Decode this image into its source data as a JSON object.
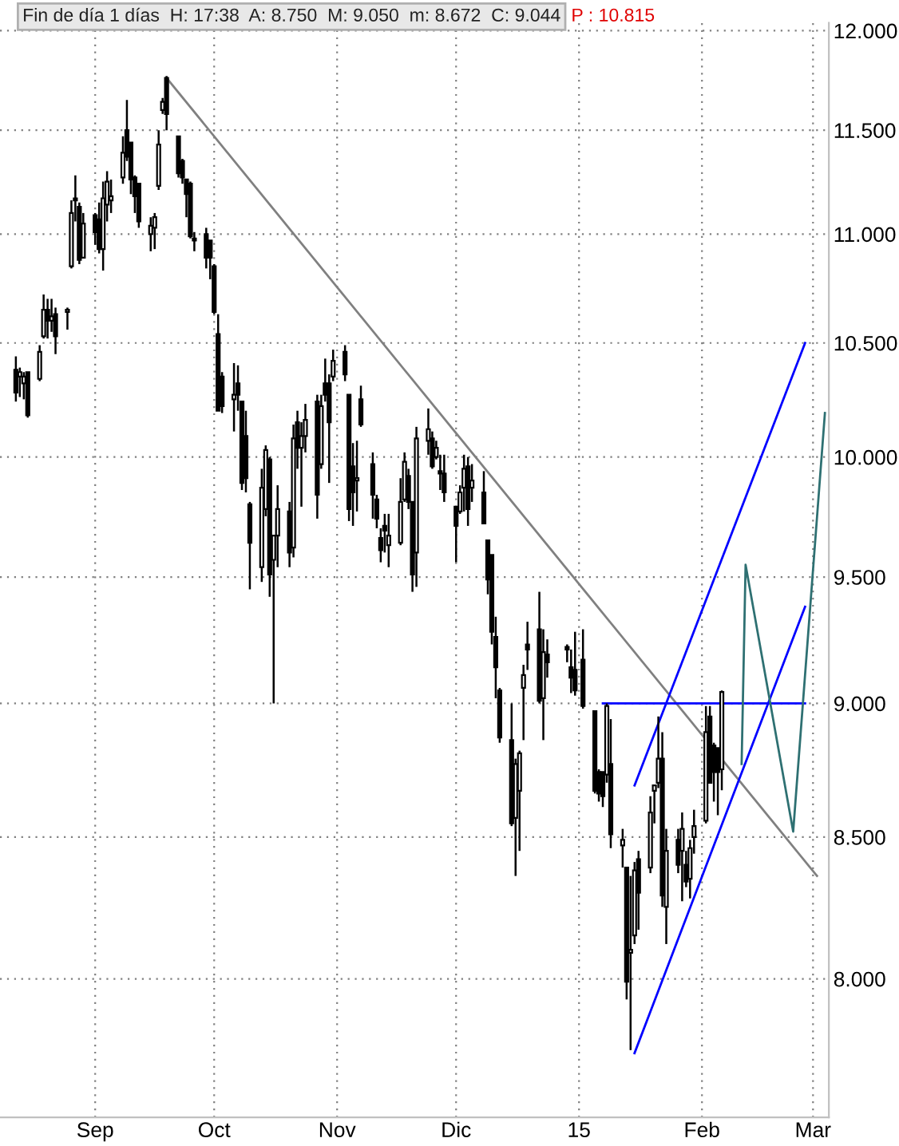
{
  "chart_data": {
    "type": "candlestick",
    "title": "Fin de día 1 días  H: 17:38  A: 8.750  M: 9.050  m: 8.672  C: 9.044",
    "annotations": [
      "P : 10.815"
    ],
    "x": [
      "2014-08-12",
      "2014-08-13",
      "2014-08-14",
      "2014-08-15",
      "2014-08-18",
      "2014-08-19",
      "2014-08-20",
      "2014-08-21",
      "2014-08-22",
      "2014-08-25",
      "2014-08-26",
      "2014-08-27",
      "2014-08-28",
      "2014-08-29",
      "2014-09-01",
      "2014-09-02",
      "2014-09-03",
      "2014-09-04",
      "2014-09-05",
      "2014-09-08",
      "2014-09-09",
      "2014-09-10",
      "2014-09-11",
      "2014-09-12",
      "2014-09-15",
      "2014-09-16",
      "2014-09-17",
      "2014-09-18",
      "2014-09-19",
      "2014-09-22",
      "2014-09-23",
      "2014-09-24",
      "2014-09-25",
      "2014-09-26",
      "2014-09-29",
      "2014-09-30",
      "2014-10-01",
      "2014-10-02",
      "2014-10-03",
      "2014-10-06",
      "2014-10-07",
      "2014-10-08",
      "2014-10-09",
      "2014-10-10",
      "2014-10-13",
      "2014-10-14",
      "2014-10-15",
      "2014-10-16",
      "2014-10-17",
      "2014-10-20",
      "2014-10-21",
      "2014-10-22",
      "2014-10-23",
      "2014-10-24",
      "2014-10-27",
      "2014-10-28",
      "2014-10-29",
      "2014-10-30",
      "2014-10-31",
      "2014-11-03",
      "2014-11-04",
      "2014-11-05",
      "2014-11-06",
      "2014-11-07",
      "2014-11-10",
      "2014-11-11",
      "2014-11-12",
      "2014-11-13",
      "2014-11-14",
      "2014-11-17",
      "2014-11-18",
      "2014-11-19",
      "2014-11-20",
      "2014-11-21",
      "2014-11-24",
      "2014-11-25",
      "2014-11-26",
      "2014-11-27",
      "2014-11-28",
      "2014-12-01",
      "2014-12-02",
      "2014-12-03",
      "2014-12-04",
      "2014-12-05",
      "2014-12-08",
      "2014-12-09",
      "2014-12-10",
      "2014-12-11",
      "2014-12-12",
      "2014-12-15",
      "2014-12-16",
      "2014-12-17",
      "2014-12-18",
      "2014-12-19",
      "2014-12-22",
      "2014-12-23",
      "2014-12-24",
      "2014-12-29",
      "2014-12-30",
      "2014-12-31",
      "2015-01-02",
      "2015-01-05",
      "2015-01-06",
      "2015-01-07",
      "2015-01-08",
      "2015-01-09",
      "2015-01-12",
      "2015-01-13",
      "2015-01-14",
      "2015-01-15",
      "2015-01-16",
      "2015-01-19",
      "2015-01-20",
      "2015-01-21",
      "2015-01-22",
      "2015-01-23",
      "2015-01-26",
      "2015-01-27",
      "2015-01-28",
      "2015-01-29",
      "2015-01-30",
      "2015-02-02",
      "2015-02-03",
      "2015-02-04",
      "2015-02-05",
      "2015-02-06"
    ],
    "ohlc": [
      [
        10.38,
        10.44,
        10.24,
        10.28
      ],
      [
        10.35,
        10.39,
        10.26,
        10.37
      ],
      [
        10.32,
        10.37,
        10.25,
        10.35
      ],
      [
        10.37,
        10.37,
        10.17,
        10.18
      ],
      [
        10.34,
        10.49,
        10.33,
        10.46
      ],
      [
        10.53,
        10.72,
        10.52,
        10.65
      ],
      [
        10.65,
        10.7,
        10.52,
        10.6
      ],
      [
        10.6,
        10.7,
        10.55,
        10.62
      ],
      [
        10.63,
        10.66,
        10.45,
        10.53
      ],
      [
        10.64,
        10.66,
        10.56,
        10.65
      ],
      [
        10.85,
        11.16,
        10.84,
        11.1
      ],
      [
        11.17,
        11.28,
        11.06,
        11.16
      ],
      [
        11.13,
        11.15,
        10.86,
        10.88
      ],
      [
        10.89,
        11.1,
        10.89,
        11.05
      ],
      [
        11.09,
        11.1,
        10.95,
        11.01
      ],
      [
        11.07,
        11.15,
        10.91,
        10.93
      ],
      [
        10.93,
        11.25,
        10.83,
        11.17
      ],
      [
        11.14,
        11.3,
        11.06,
        11.25
      ],
      [
        11.16,
        11.26,
        11.1,
        11.18
      ],
      [
        11.27,
        11.47,
        11.24,
        11.39
      ],
      [
        11.5,
        11.65,
        11.35,
        11.37
      ],
      [
        11.44,
        11.44,
        11.19,
        11.26
      ],
      [
        11.27,
        11.28,
        11.1,
        11.18
      ],
      [
        11.24,
        11.24,
        11.03,
        11.06
      ],
      [
        11.0,
        11.08,
        10.92,
        11.04
      ],
      [
        11.03,
        11.1,
        10.93,
        11.08
      ],
      [
        11.23,
        11.5,
        11.21,
        11.43
      ],
      [
        11.6,
        11.66,
        11.58,
        11.64
      ],
      [
        11.76,
        11.77,
        11.5,
        11.58
      ],
      [
        11.47,
        11.47,
        11.27,
        11.29
      ],
      [
        11.35,
        11.36,
        11.24,
        11.27
      ],
      [
        11.26,
        11.26,
        11.08,
        11.19
      ],
      [
        11.24,
        11.25,
        10.98,
        10.99
      ],
      [
        10.98,
        11.01,
        10.92,
        10.97
      ],
      [
        11.0,
        11.03,
        10.84,
        10.89
      ],
      [
        10.97,
        10.97,
        10.79,
        10.89
      ],
      [
        10.85,
        10.86,
        10.63,
        10.64
      ],
      [
        10.54,
        10.63,
        10.2,
        10.2
      ],
      [
        10.35,
        10.37,
        10.19,
        10.22
      ],
      [
        10.25,
        10.41,
        10.11,
        10.27
      ],
      [
        10.32,
        10.4,
        10.2,
        10.27
      ],
      [
        10.24,
        10.24,
        9.86,
        9.89
      ],
      [
        10.09,
        10.2,
        9.85,
        9.91
      ],
      [
        9.8,
        9.81,
        9.45,
        9.64
      ],
      [
        9.54,
        9.95,
        9.48,
        9.87
      ],
      [
        9.78,
        10.05,
        9.75,
        10.03
      ],
      [
        9.99,
        10.0,
        9.42,
        9.51
      ],
      [
        9.57,
        9.67,
        9.0,
        9.67
      ],
      [
        9.67,
        9.88,
        9.54,
        9.78
      ],
      [
        9.77,
        9.81,
        9.54,
        9.6
      ],
      [
        9.62,
        10.14,
        9.58,
        10.08
      ],
      [
        10.15,
        10.2,
        9.95,
        10.04
      ],
      [
        10.04,
        10.15,
        9.79,
        10.09
      ],
      [
        10.09,
        10.23,
        10.02,
        10.16
      ],
      [
        10.24,
        10.27,
        9.74,
        9.84
      ],
      [
        9.97,
        10.27,
        9.95,
        10.22
      ],
      [
        10.32,
        10.43,
        10.24,
        10.27
      ],
      [
        10.32,
        10.36,
        9.89,
        10.15
      ],
      [
        10.35,
        10.47,
        10.33,
        10.42
      ],
      [
        10.46,
        10.49,
        10.33,
        10.36
      ],
      [
        10.27,
        10.27,
        9.73,
        9.78
      ],
      [
        9.96,
        10.06,
        9.71,
        9.85
      ],
      [
        9.9,
        10.07,
        9.77,
        9.91
      ],
      [
        10.25,
        10.31,
        10.13,
        10.14
      ],
      [
        9.97,
        10.02,
        9.74,
        9.84
      ],
      [
        9.82,
        9.84,
        9.7,
        9.74
      ],
      [
        9.66,
        9.7,
        9.56,
        9.61
      ],
      [
        9.71,
        9.76,
        9.6,
        9.69
      ],
      [
        9.63,
        9.76,
        9.54,
        9.67
      ],
      [
        9.64,
        9.91,
        9.63,
        9.81
      ],
      [
        9.82,
        10.02,
        9.81,
        9.98
      ],
      [
        9.92,
        9.95,
        9.78,
        9.81
      ],
      [
        9.81,
        9.81,
        9.44,
        9.51
      ],
      [
        9.6,
        10.13,
        9.46,
        10.08
      ],
      [
        10.07,
        10.21,
        10.01,
        10.12
      ],
      [
        10.08,
        10.11,
        9.95,
        9.96
      ],
      [
        10.0,
        10.07,
        9.99,
        10.04
      ],
      [
        9.94,
        10.01,
        9.86,
        9.93
      ],
      [
        9.93,
        10.01,
        9.81,
        9.85
      ],
      [
        9.79,
        9.79,
        9.56,
        9.71
      ],
      [
        9.77,
        9.88,
        9.76,
        9.85
      ],
      [
        9.87,
        10.01,
        9.77,
        9.95
      ],
      [
        9.96,
        10.0,
        9.71,
        9.78
      ],
      [
        9.87,
        9.97,
        9.81,
        9.9
      ],
      [
        9.85,
        9.94,
        9.72,
        9.72
      ],
      [
        9.65,
        9.65,
        9.43,
        9.49
      ],
      [
        9.59,
        9.59,
        9.23,
        9.28
      ],
      [
        9.26,
        9.34,
        9.02,
        9.14
      ],
      [
        9.05,
        9.06,
        8.85,
        8.87
      ],
      [
        8.86,
        9.0,
        8.54,
        8.55
      ],
      [
        8.57,
        8.79,
        8.36,
        8.77
      ],
      [
        8.67,
        8.82,
        8.45,
        8.81
      ],
      [
        9.06,
        9.15,
        8.86,
        9.11
      ],
      [
        9.23,
        9.32,
        9.13,
        9.21
      ],
      [
        9.29,
        9.44,
        9.0,
        9.01
      ],
      [
        9.02,
        9.29,
        8.86,
        9.2
      ],
      [
        9.19,
        9.25,
        9.1,
        9.16
      ],
      [
        9.22,
        9.23,
        9.16,
        9.21
      ],
      [
        9.14,
        9.21,
        9.04,
        9.1
      ],
      [
        9.13,
        9.28,
        9.03,
        9.05
      ],
      [
        9.17,
        9.29,
        8.98,
        8.99
      ],
      [
        8.97,
        8.97,
        8.66,
        8.67
      ],
      [
        8.74,
        8.75,
        8.63,
        8.66
      ],
      [
        8.74,
        8.74,
        8.61,
        8.65
      ],
      [
        8.73,
        9.0,
        8.7,
        8.99
      ],
      [
        8.77,
        8.94,
        8.46,
        8.51
      ],
      [
        8.47,
        8.53,
        8.39,
        8.49
      ],
      [
        8.39,
        8.39,
        7.93,
        7.99
      ],
      [
        8.09,
        8.36,
        7.76,
        8.1
      ],
      [
        8.15,
        8.41,
        8.12,
        8.38
      ],
      [
        8.42,
        8.45,
        8.17,
        8.3
      ],
      [
        8.39,
        8.65,
        8.37,
        8.59
      ],
      [
        8.67,
        8.69,
        8.55,
        8.69
      ],
      [
        8.7,
        8.95,
        8.68,
        8.79
      ],
      [
        8.79,
        8.89,
        8.25,
        8.29
      ],
      [
        8.25,
        8.53,
        8.12,
        8.45
      ],
      [
        8.49,
        8.53,
        8.37,
        8.4
      ],
      [
        8.45,
        8.59,
        8.27,
        8.53
      ],
      [
        8.4,
        8.45,
        8.32,
        8.34
      ],
      [
        8.35,
        8.49,
        8.28,
        8.46
      ],
      [
        8.5,
        8.6,
        8.44,
        8.54
      ],
      [
        8.56,
        8.99,
        8.55,
        8.89
      ],
      [
        8.95,
        8.99,
        8.7,
        8.7
      ],
      [
        8.84,
        8.85,
        8.63,
        8.74
      ],
      [
        8.83,
        8.83,
        8.58,
        8.74
      ],
      [
        8.75,
        9.05,
        8.672,
        9.044
      ]
    ],
    "series": [
      {
        "type": "line",
        "color": "#808080",
        "x": [
          "2014-09-19",
          "2015-03-02"
        ],
        "values": [
          11.76,
          8.36
        ]
      },
      {
        "type": "line",
        "color": "#0000ff",
        "x": [
          "2015-01-07",
          "2015-02-27"
        ],
        "values": [
          9.0,
          9.0
        ]
      },
      {
        "type": "line",
        "color": "#0000ff",
        "x": [
          "2015-01-15",
          "2015-02-27"
        ],
        "values": [
          7.75,
          9.38
        ]
      },
      {
        "type": "line",
        "color": "#0000ff",
        "x": [
          "2015-01-15",
          "2015-02-27"
        ],
        "values": [
          8.69,
          10.5
        ]
      },
      {
        "type": "line",
        "color": "#2e7072",
        "x": [
          "2015-02-11",
          "2015-02-12",
          "2015-02-24",
          "2015-03-04"
        ],
        "values": [
          8.77,
          9.55,
          8.52,
          10.19
        ]
      }
    ],
    "log": "y",
    "grid": true,
    "xlim": [
      "2014-08-08",
      "2015-03-05"
    ],
    "xticks": [
      {
        "value": "2014-09-01",
        "label": "Sep"
      },
      {
        "value": "2014-10-01",
        "label": "Oct"
      },
      {
        "value": "2014-11-01",
        "label": "Nov"
      },
      {
        "value": "2014-12-01",
        "label": "Dic"
      },
      {
        "value": "2015-01-01",
        "label": "15"
      },
      {
        "value": "2015-02-01",
        "label": "Feb"
      },
      {
        "value": "2015-03-01",
        "label": "Mar"
      }
    ],
    "ylim": [
      7.54,
      12.04
    ],
    "yticks": [
      {
        "value": 8,
        "label": "8.000"
      },
      {
        "value": 8.5,
        "label": "8.500"
      },
      {
        "value": 9,
        "label": "9.000"
      },
      {
        "value": 9.5,
        "label": "9.500"
      },
      {
        "value": 10,
        "label": "10.000"
      },
      {
        "value": 10.5,
        "label": "10.500"
      },
      {
        "value": 11,
        "label": "11.000"
      },
      {
        "value": 11.5,
        "label": "11.500"
      },
      {
        "value": 12,
        "label": "12.000"
      }
    ]
  }
}
